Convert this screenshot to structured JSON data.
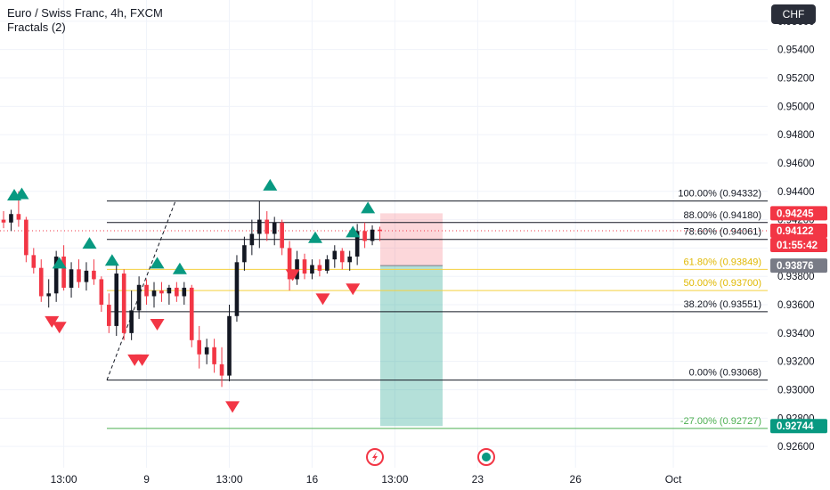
{
  "legend": {
    "title": "Euro / Swiss Franc, 4h, FXCM",
    "indicator": "Fractals (2)"
  },
  "currency_button": "CHF",
  "colors": {
    "up": "#089981",
    "down": "#f23645",
    "fib_line": "#131722",
    "fib_gold": "#f4d03f",
    "target_line": "#4caf50",
    "stop_zone": "#f23645",
    "target_zone": "#089981",
    "axis_text": "#131722"
  },
  "chart_data": {
    "type": "candlestick",
    "symbol": "Euro / Swiss Franc",
    "timeframe": "4h",
    "exchange": "FXCM",
    "y_axis": {
      "range": [
        0.9245,
        0.9575
      ],
      "ticks": [
        "0.95600",
        "0.95400",
        "0.95200",
        "0.95000",
        "0.94800",
        "0.94600",
        "0.94400",
        "0.94200",
        "0.94000",
        "0.93800",
        "0.93600",
        "0.93400",
        "0.93200",
        "0.93000",
        "0.92800",
        "0.92600"
      ]
    },
    "x_axis": {
      "ticks": [
        {
          "label": "13:00",
          "bar": 8
        },
        {
          "label": "9",
          "bar": 19
        },
        {
          "label": "13:00",
          "bar": 30
        },
        {
          "label": "16",
          "bar": 41
        },
        {
          "label": "13:00",
          "bar": 52
        },
        {
          "label": "23",
          "bar": 63
        },
        {
          "label": "26",
          "bar": 76
        },
        {
          "label": "Oct",
          "bar": 89
        }
      ]
    },
    "candles": [
      {
        "o": 0.942,
        "h": 0.9426,
        "l": 0.9414,
        "c": 0.9418
      },
      {
        "o": 0.9418,
        "h": 0.9427,
        "l": 0.9412,
        "c": 0.9424
      },
      {
        "o": 0.9424,
        "h": 0.944,
        "l": 0.9415,
        "c": 0.942
      },
      {
        "o": 0.942,
        "h": 0.9422,
        "l": 0.939,
        "c": 0.9395
      },
      {
        "o": 0.9395,
        "h": 0.94,
        "l": 0.9382,
        "c": 0.9386
      },
      {
        "o": 0.9386,
        "h": 0.9392,
        "l": 0.9362,
        "c": 0.9366
      },
      {
        "o": 0.9366,
        "h": 0.9378,
        "l": 0.9358,
        "c": 0.9368
      },
      {
        "o": 0.9368,
        "h": 0.9398,
        "l": 0.9362,
        "c": 0.9394
      },
      {
        "o": 0.9394,
        "h": 0.9402,
        "l": 0.937,
        "c": 0.9372
      },
      {
        "o": 0.9372,
        "h": 0.939,
        "l": 0.9365,
        "c": 0.9385
      },
      {
        "o": 0.9385,
        "h": 0.9392,
        "l": 0.9372,
        "c": 0.9376
      },
      {
        "o": 0.9376,
        "h": 0.939,
        "l": 0.937,
        "c": 0.9384
      },
      {
        "o": 0.9384,
        "h": 0.9392,
        "l": 0.9374,
        "c": 0.9378
      },
      {
        "o": 0.9378,
        "h": 0.938,
        "l": 0.9355,
        "c": 0.936
      },
      {
        "o": 0.936,
        "h": 0.9368,
        "l": 0.934,
        "c": 0.9345
      },
      {
        "o": 0.9345,
        "h": 0.9388,
        "l": 0.9338,
        "c": 0.9382
      },
      {
        "o": 0.9382,
        "h": 0.9385,
        "l": 0.9335,
        "c": 0.934
      },
      {
        "o": 0.934,
        "h": 0.937,
        "l": 0.9335,
        "c": 0.9356
      },
      {
        "o": 0.9356,
        "h": 0.938,
        "l": 0.935,
        "c": 0.9374
      },
      {
        "o": 0.9374,
        "h": 0.9378,
        "l": 0.936,
        "c": 0.9366
      },
      {
        "o": 0.9366,
        "h": 0.9376,
        "l": 0.9358,
        "c": 0.937
      },
      {
        "o": 0.937,
        "h": 0.9376,
        "l": 0.9362,
        "c": 0.9368
      },
      {
        "o": 0.9368,
        "h": 0.9374,
        "l": 0.936,
        "c": 0.9372
      },
      {
        "o": 0.9372,
        "h": 0.9376,
        "l": 0.9362,
        "c": 0.9366
      },
      {
        "o": 0.9366,
        "h": 0.9376,
        "l": 0.936,
        "c": 0.9372
      },
      {
        "o": 0.9372,
        "h": 0.9374,
        "l": 0.933,
        "c": 0.9335
      },
      {
        "o": 0.9335,
        "h": 0.9345,
        "l": 0.9315,
        "c": 0.9325
      },
      {
        "o": 0.9325,
        "h": 0.9336,
        "l": 0.9318,
        "c": 0.933
      },
      {
        "o": 0.933,
        "h": 0.9336,
        "l": 0.9312,
        "c": 0.9318
      },
      {
        "o": 0.9318,
        "h": 0.933,
        "l": 0.9302,
        "c": 0.931
      },
      {
        "o": 0.931,
        "h": 0.936,
        "l": 0.9306,
        "c": 0.9352
      },
      {
        "o": 0.9352,
        "h": 0.9395,
        "l": 0.9348,
        "c": 0.939
      },
      {
        "o": 0.939,
        "h": 0.9408,
        "l": 0.9384,
        "c": 0.9402
      },
      {
        "o": 0.9402,
        "h": 0.942,
        "l": 0.9395,
        "c": 0.941
      },
      {
        "o": 0.941,
        "h": 0.9433,
        "l": 0.94,
        "c": 0.942
      },
      {
        "o": 0.942,
        "h": 0.9426,
        "l": 0.9405,
        "c": 0.941
      },
      {
        "o": 0.941,
        "h": 0.9422,
        "l": 0.9402,
        "c": 0.9418
      },
      {
        "o": 0.9418,
        "h": 0.942,
        "l": 0.9395,
        "c": 0.94
      },
      {
        "o": 0.94,
        "h": 0.9405,
        "l": 0.937,
        "c": 0.9378
      },
      {
        "o": 0.9378,
        "h": 0.9398,
        "l": 0.9374,
        "c": 0.9392
      },
      {
        "o": 0.9392,
        "h": 0.9396,
        "l": 0.9378,
        "c": 0.9382
      },
      {
        "o": 0.9382,
        "h": 0.9392,
        "l": 0.9378,
        "c": 0.9388
      },
      {
        "o": 0.9388,
        "h": 0.9392,
        "l": 0.938,
        "c": 0.9384
      },
      {
        "o": 0.9384,
        "h": 0.9395,
        "l": 0.9382,
        "c": 0.9392
      },
      {
        "o": 0.9392,
        "h": 0.9402,
        "l": 0.9386,
        "c": 0.9398
      },
      {
        "o": 0.9398,
        "h": 0.94,
        "l": 0.9385,
        "c": 0.939
      },
      {
        "o": 0.939,
        "h": 0.9398,
        "l": 0.9384,
        "c": 0.9394
      },
      {
        "o": 0.9394,
        "h": 0.9417,
        "l": 0.9388,
        "c": 0.9412
      },
      {
        "o": 0.9412,
        "h": 0.9418,
        "l": 0.94,
        "c": 0.9405
      },
      {
        "o": 0.9405,
        "h": 0.9416,
        "l": 0.9402,
        "c": 0.9413
      },
      {
        "o": 0.9413,
        "h": 0.9415,
        "l": 0.9405,
        "c": 0.9412
      }
    ],
    "fractals_up": [
      0,
      1,
      6,
      10,
      13,
      19,
      22,
      34,
      40,
      45,
      47
    ],
    "fractals_down": [
      5,
      6,
      16,
      17,
      19,
      29,
      37,
      41,
      45
    ],
    "fib_levels": [
      {
        "label": "100.00% (0.94332)",
        "value": 0.94332,
        "color": "fib_line"
      },
      {
        "label": "88.00% (0.94180)",
        "value": 0.9418,
        "color": "fib_line"
      },
      {
        "label": "78.60% (0.94061)",
        "value": 0.94061,
        "color": "fib_line"
      },
      {
        "label": "61.80% (0.93849)",
        "value": 0.93849,
        "color": "fib_gold"
      },
      {
        "label": "50.00% (0.93700)",
        "value": 0.937,
        "color": "fib_gold"
      },
      {
        "label": "38.20% (0.93551)",
        "value": 0.93551,
        "color": "fib_line"
      },
      {
        "label": "0.00% (0.93068)",
        "value": 0.93068,
        "color": "fib_line"
      },
      {
        "label": "-27.00% (0.92727)",
        "value": 0.92727,
        "color": "target_line"
      }
    ],
    "position": {
      "entry": 0.93876,
      "stop": 0.94245,
      "target": 0.92744
    },
    "price_labels": [
      {
        "text": "0.94245",
        "value": 0.94245,
        "bg": "#f23645",
        "fg": "#ffffff"
      },
      {
        "text": "0.94122",
        "value": 0.94122,
        "bg": "#f23645",
        "fg": "#ffffff"
      },
      {
        "text": "01:55:42",
        "value": 0.94122,
        "bg": "#f23645",
        "fg": "#ffffff",
        "sub": true
      },
      {
        "text": "0.93876",
        "value": 0.93876,
        "bg": "#787b86",
        "fg": "#ffffff"
      },
      {
        "text": "0.92744",
        "value": 0.92744,
        "bg": "#089981",
        "fg": "#ffffff"
      }
    ],
    "current_price": 0.94122,
    "countdown": "01:55:42"
  }
}
